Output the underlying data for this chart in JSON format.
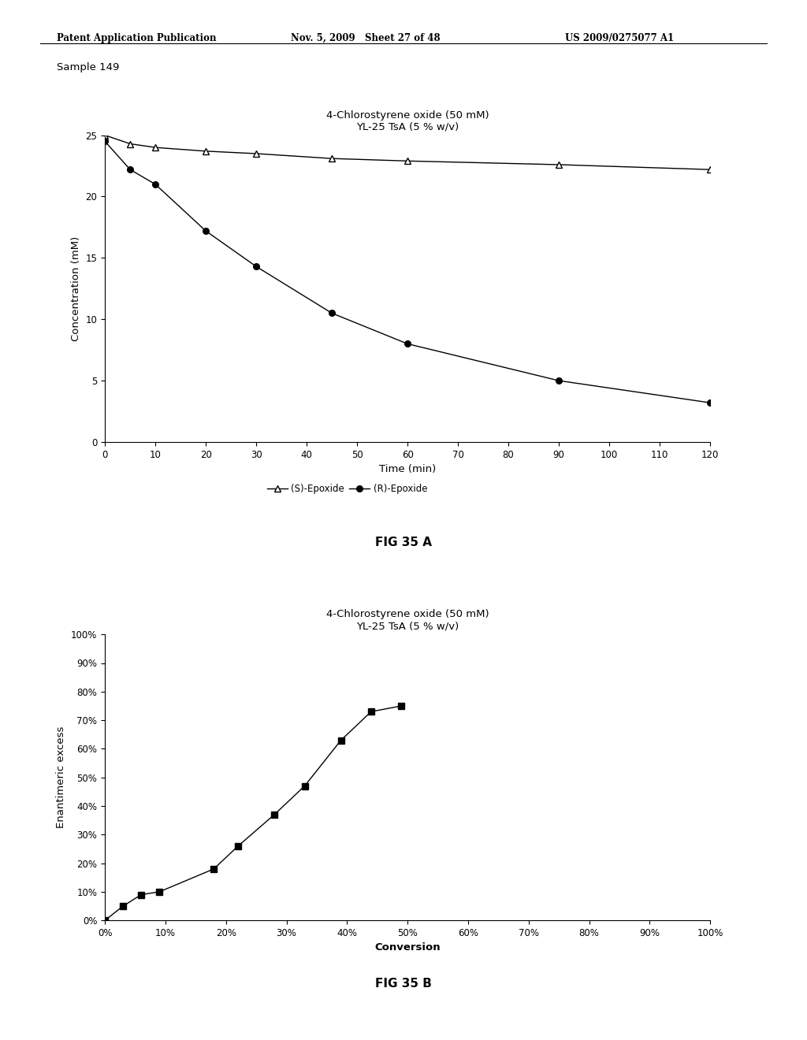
{
  "header_left": "Patent Application Publication",
  "header_mid": "Nov. 5, 2009   Sheet 27 of 48",
  "header_right": "US 2009/0275077 A1",
  "sample_label": "Sample 149",
  "fig_a": {
    "title_line1": "4-Chlorostyrene oxide (50 mM)",
    "title_line2": "YL-25 TsA (5 % w/v)",
    "xlabel": "Time (min)",
    "ylabel": "Concentration (mM)",
    "ylim": [
      0,
      25
    ],
    "xlim": [
      0,
      120
    ],
    "xticks": [
      0,
      10,
      20,
      30,
      40,
      50,
      60,
      70,
      80,
      90,
      100,
      110,
      120
    ],
    "yticks": [
      0,
      5,
      10,
      15,
      20,
      25
    ],
    "s_epoxide_x": [
      0,
      5,
      10,
      20,
      30,
      45,
      60,
      90,
      120
    ],
    "s_epoxide_y": [
      25.0,
      24.3,
      24.0,
      23.7,
      23.5,
      23.1,
      22.9,
      22.6,
      22.2
    ],
    "r_epoxide_x": [
      0,
      5,
      10,
      20,
      30,
      45,
      60,
      90,
      120
    ],
    "r_epoxide_y": [
      24.5,
      22.2,
      21.0,
      17.2,
      14.3,
      10.5,
      8.0,
      5.0,
      3.2
    ],
    "legend_s": "(S)-Epoxide",
    "legend_r": "(R)-Epoxide",
    "fig_label": "FIG 35 A"
  },
  "fig_b": {
    "title_line1": "4-Chlorostyrene oxide (50 mM)",
    "title_line2": "YL-25 TsA (5 % w/v)",
    "xlabel": "Conversion",
    "ylabel": "Enantimeric excess",
    "ylim": [
      0,
      1.0
    ],
    "xlim": [
      0,
      1.0
    ],
    "xticks": [
      0,
      0.1,
      0.2,
      0.3,
      0.4,
      0.5,
      0.6,
      0.7,
      0.8,
      0.9,
      1.0
    ],
    "yticks": [
      0,
      0.1,
      0.2,
      0.3,
      0.4,
      0.5,
      0.6,
      0.7,
      0.8,
      0.9,
      1.0
    ],
    "x": [
      0.0,
      0.03,
      0.06,
      0.09,
      0.18,
      0.22,
      0.28,
      0.33,
      0.39,
      0.44,
      0.49
    ],
    "y": [
      0.0,
      0.05,
      0.09,
      0.1,
      0.18,
      0.26,
      0.37,
      0.47,
      0.63,
      0.73,
      0.75
    ],
    "fig_label": "FIG 35 B"
  },
  "bg_color": "#ffffff",
  "line_color": "#000000",
  "text_color": "#000000"
}
